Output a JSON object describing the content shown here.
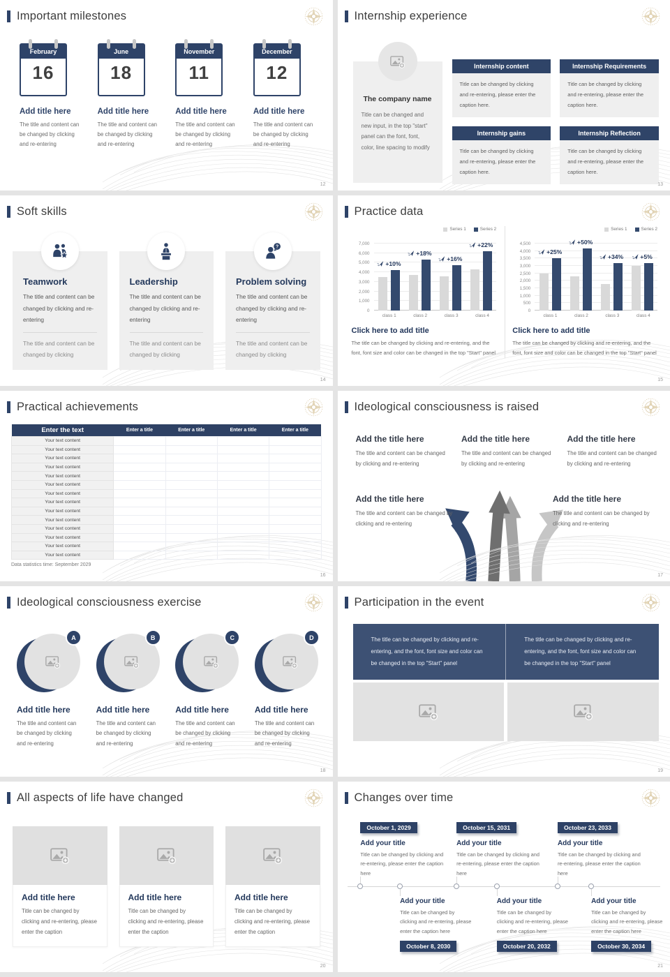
{
  "colors": {
    "navy": "#2e4368",
    "navy_banner": "#3d5174",
    "table_header": "#2e4164",
    "series1": "#d9d9d9",
    "series2": "#344a6e",
    "card_gray": "#efefef",
    "placeholder_gray": "#e2e2e2",
    "gold": "#cdb88c"
  },
  "chart_data": [
    {
      "type": "bar",
      "title": "Click here to add title",
      "caption": "The title can be changed by clicking and re-entering, and the font, font size and color can be changed in the top \"Start\" panel",
      "legend": [
        "Series 1",
        "Series 2"
      ],
      "legend_position": "top-right",
      "grid": true,
      "categories": [
        "class 1",
        "class 2",
        "class 3",
        "class 4"
      ],
      "series": [
        {
          "name": "Series 1",
          "values": [
            3500,
            3700,
            3600,
            4300
          ]
        },
        {
          "name": "Series 2",
          "values": [
            4200,
            5300,
            4750,
            6200
          ]
        }
      ],
      "bar_labels": [
        "+10%",
        "+18%",
        "+16%",
        "+22%"
      ],
      "ylim": [
        0,
        7000
      ],
      "ytick_step": 1000
    },
    {
      "type": "bar",
      "title": "Click here to add title",
      "caption": "The title can be changed by clicking and re-entering, and the font, font size and color can be changed in the top \"Start\" panel",
      "legend": [
        "Series 1",
        "Series 2"
      ],
      "legend_position": "top-right",
      "grid": true,
      "categories": [
        "class 1",
        "class 2",
        "class 3",
        "class 4"
      ],
      "series": [
        {
          "name": "Series 1",
          "values": [
            2500,
            2300,
            1800,
            3000
          ]
        },
        {
          "name": "Series 2",
          "values": [
            3500,
            4150,
            3200,
            3200
          ]
        }
      ],
      "bar_labels": [
        "+25%",
        "+50%",
        "+34%",
        "+5%"
      ],
      "ylim": [
        0,
        4500
      ],
      "ytick_step": 500
    }
  ],
  "slides": [
    {
      "title": "Important milestones",
      "page": "12",
      "items": [
        {
          "month": "February",
          "day": "16",
          "title": "Add title here",
          "caption": "The title and content can be changed by clicking and re-entering"
        },
        {
          "month": "June",
          "day": "18",
          "title": "Add title here",
          "caption": "The title and content can be changed by clicking and re-entering"
        },
        {
          "month": "November",
          "day": "11",
          "title": "Add title here",
          "caption": "The title and content can be changed by clicking and re-entering"
        },
        {
          "month": "December",
          "day": "12",
          "title": "Add title here",
          "caption": "The title and content can be changed by clicking and re-entering"
        }
      ]
    },
    {
      "title": "Internship experience",
      "page": "13",
      "company": {
        "name": "The company name",
        "caption": "Title can be changed and new input, in the top \"start\" panel can the font, font, color, line spacing to modify"
      },
      "boxes": [
        {
          "header": "Internship content",
          "body": "Title can be changed by clicking and re-entering, please enter the caption here."
        },
        {
          "header": "Internship Requirements",
          "body": "Title can be changed by clicking and re-entering, please enter the caption here."
        },
        {
          "header": "Internship gains",
          "body": "Title can be changed by clicking and re-entering, please enter the caption here."
        },
        {
          "header": "Internship Reflection",
          "body": "Title can be changed by clicking and re-entering, please enter the caption here."
        }
      ]
    },
    {
      "title": "Soft skills",
      "page": "14",
      "cards": [
        {
          "title": "Teamwork",
          "body": "The title and content can be changed by clicking and re-entering",
          "footer": "The title and content can be changed by clicking"
        },
        {
          "title": "Leadership",
          "body": "The title and content can be changed by clicking and re-entering",
          "footer": "The title and content can be changed by clicking"
        },
        {
          "title": "Problem solving",
          "body": "The title and content can be changed by clicking and re-entering",
          "footer": "The title and content can be changed by clicking"
        }
      ]
    },
    {
      "title": "Practice data",
      "page": "15"
    },
    {
      "title": "Practical achievements",
      "page": "16",
      "table": {
        "headers": [
          "Enter the text",
          "Enter a title",
          "Enter a title",
          "Enter a title",
          "Enter a title"
        ],
        "row_text": "Your text content",
        "row_count": 14,
        "note": "Data statistics time: September 2029"
      }
    },
    {
      "title": "Ideological consciousness is raised",
      "page": "17",
      "blocks": [
        {
          "title": "Add the title here",
          "caption": "The title and content can be changed by clicking and re-entering"
        },
        {
          "title": "Add the title here",
          "caption": "The title and content can be changed by clicking and re-entering"
        },
        {
          "title": "Add the title here",
          "caption": "The title and content can be changed by clicking and re-entering"
        },
        {
          "title": "Add the title here",
          "caption": "The title and content can be changed by clicking and re-entering"
        },
        {
          "title": "Add the title here",
          "caption": "The title and content can be changed by clicking and re-entering"
        }
      ]
    },
    {
      "title": "Ideological consciousness exercise",
      "page": "18",
      "items": [
        {
          "letter": "A",
          "title": "Add title here",
          "caption": "The title and content can be changed by clicking and re-entering"
        },
        {
          "letter": "B",
          "title": "Add title here",
          "caption": "The title and content can be changed by clicking and re-entering"
        },
        {
          "letter": "C",
          "title": "Add title here",
          "caption": "The title and content can be changed by clicking and re-entering"
        },
        {
          "letter": "D",
          "title": "Add title here",
          "caption": "The title and content can be changed by clicking and re-entering"
        }
      ]
    },
    {
      "title": "Participation in the event",
      "page": "19",
      "banner": [
        "The title can be changed by clicking and re-entering, and the font, font size and color can be changed in the top \"Start\" panel",
        "The title can be changed by clicking and re-entering, and the font, font size and color can be changed in the top \"Start\" panel"
      ]
    },
    {
      "title": "All aspects of life have changed",
      "page": "20",
      "cards": [
        {
          "title": "Add title here",
          "caption": "Title can be changed by clicking and re-entering, please enter the caption"
        },
        {
          "title": "Add title here",
          "caption": "Title can be changed by clicking and re-entering, please enter the caption"
        },
        {
          "title": "Add title here",
          "caption": "Title can be changed by clicking and re-entering, please enter the caption"
        }
      ]
    },
    {
      "title": "Changes over time",
      "page": "21",
      "top_items": [
        {
          "date": "October 1, 2029",
          "title": "Add your title",
          "caption": "Title can be changed by clicking and re-entering, please enter the caption here"
        },
        {
          "date": "October 15, 2031",
          "title": "Add your title",
          "caption": "Title can be changed by clicking and re-entering, please enter the caption here"
        },
        {
          "date": "October 23, 2033",
          "title": "Add your title",
          "caption": "Title can be changed by clicking and re-entering, please enter the caption here"
        }
      ],
      "bottom_items": [
        {
          "date": "October 8, 2030",
          "title": "Add your title",
          "caption": "Title can be changed by clicking and re-entering, please enter the caption here"
        },
        {
          "date": "October 20, 2032",
          "title": "Add your title",
          "caption": "Title can be changed by clicking and re-entering, please enter the caption here"
        },
        {
          "date": "October 30, 2034",
          "title": "Add your title",
          "caption": "Title can be changed by clicking and re-entering, please enter the caption here"
        }
      ]
    }
  ]
}
